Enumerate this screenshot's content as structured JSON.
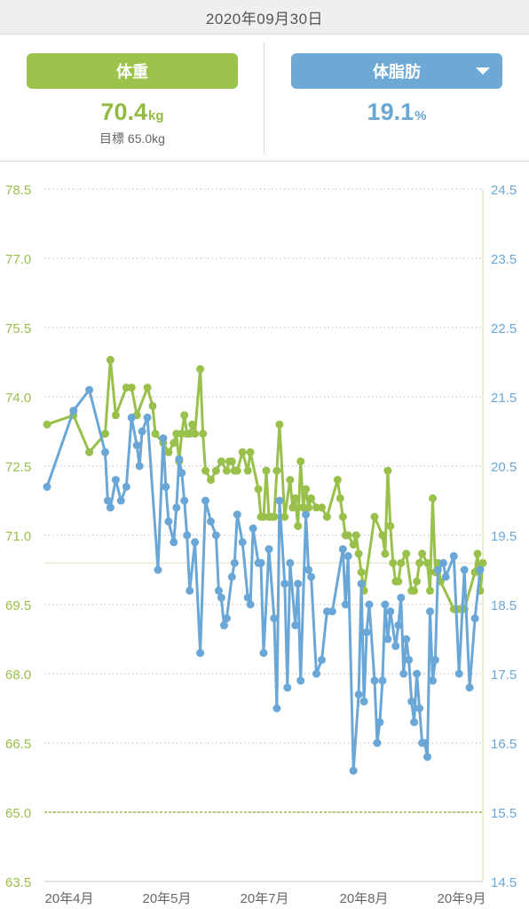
{
  "header": {
    "date": "2020年09月30日"
  },
  "weight_panel": {
    "label": "体重",
    "value": "70.4",
    "unit": "kg",
    "goal_label": "目標",
    "goal_value": "65.0kg"
  },
  "fat_panel": {
    "label": "体脂肪",
    "value": "19.1",
    "unit": "%",
    "dropdown_icon": "caret-down-icon"
  },
  "colors": {
    "weight": "#98c04a",
    "fat": "#6aa7d6",
    "grid": "#bdbdbd",
    "goal": "#b8c77a"
  },
  "chart_data": {
    "type": "line",
    "title": "",
    "x_ticks": [
      "20年4月",
      "20年5月",
      "20年7月",
      "20年8月",
      "20年9月"
    ],
    "y_left": {
      "ticks": [
        "78.5",
        "77.0",
        "75.5",
        "74.0",
        "72.5",
        "71.0",
        "69.5",
        "68.0",
        "66.5",
        "65.0",
        "63.5"
      ],
      "range": [
        63.5,
        78.5
      ]
    },
    "y_right": {
      "ticks": [
        "24.5",
        "23.5",
        "22.5",
        "21.5",
        "20.5",
        "19.5",
        "18.5",
        "17.5",
        "16.5",
        "15.5",
        "14.5"
      ],
      "range": [
        14.5,
        24.5
      ]
    },
    "goal_line": 65.0,
    "current_fat_line": 19.1,
    "series": [
      {
        "axis": "left",
        "values": [
          [
            0,
            73.4
          ],
          [
            5,
            73.6
          ],
          [
            8,
            72.8
          ],
          [
            11,
            73.2
          ],
          [
            12,
            74.8
          ],
          [
            13,
            73.6
          ],
          [
            15,
            74.2
          ],
          [
            16,
            74.2
          ],
          [
            17,
            73.6
          ],
          [
            19,
            74.2
          ],
          [
            20,
            73.8
          ],
          [
            20.5,
            73.2
          ],
          [
            22,
            73.0
          ],
          [
            23,
            72.8
          ],
          [
            24,
            73.0
          ],
          [
            24.5,
            73.2
          ],
          [
            25,
            72.6
          ],
          [
            25.5,
            73.2
          ],
          [
            26,
            73.6
          ],
          [
            26.5,
            73.2
          ],
          [
            27,
            73.2
          ],
          [
            27.5,
            73.4
          ],
          [
            28,
            73.2
          ],
          [
            29,
            74.6
          ],
          [
            29.5,
            73.2
          ],
          [
            30,
            72.4
          ],
          [
            31,
            72.2
          ],
          [
            32,
            72.4
          ],
          [
            33,
            72.6
          ],
          [
            34,
            72.4
          ],
          [
            34.5,
            72.6
          ],
          [
            35,
            72.6
          ],
          [
            35.5,
            72.4
          ],
          [
            36,
            72.4
          ],
          [
            37,
            72.8
          ],
          [
            38,
            72.4
          ],
          [
            38.5,
            72.8
          ],
          [
            40,
            72.0
          ],
          [
            40.5,
            71.4
          ],
          [
            41,
            71.4
          ],
          [
            41.5,
            72.4
          ],
          [
            42,
            71.4
          ],
          [
            42.5,
            71.4
          ],
          [
            43,
            71.4
          ],
          [
            43.5,
            72.4
          ],
          [
            44,
            73.4
          ],
          [
            45,
            71.4
          ],
          [
            46,
            72.2
          ],
          [
            46.5,
            71.6
          ],
          [
            47,
            71.8
          ],
          [
            47.5,
            71.2
          ],
          [
            48,
            72.6
          ],
          [
            48.5,
            71.6
          ],
          [
            49,
            72.0
          ],
          [
            49.5,
            71.6
          ],
          [
            50,
            71.8
          ],
          [
            51,
            71.6
          ],
          [
            52,
            71.6
          ],
          [
            53,
            71.4
          ],
          [
            55,
            72.2
          ],
          [
            55.5,
            71.8
          ],
          [
            56,
            71.4
          ],
          [
            56.5,
            71.0
          ],
          [
            57,
            71.0
          ],
          [
            58,
            70.8
          ],
          [
            58.5,
            71.0
          ],
          [
            59,
            70.6
          ],
          [
            59.5,
            70.2
          ],
          [
            60,
            69.8
          ],
          [
            62,
            71.4
          ],
          [
            63.5,
            71.0
          ],
          [
            64,
            70.6
          ],
          [
            64.5,
            72.4
          ],
          [
            65,
            71.2
          ],
          [
            65.5,
            70.4
          ],
          [
            66,
            70.0
          ],
          [
            66.5,
            70.0
          ],
          [
            67,
            70.4
          ],
          [
            68,
            70.6
          ],
          [
            69,
            69.8
          ],
          [
            69.5,
            69.8
          ],
          [
            70,
            70.0
          ],
          [
            70.5,
            70.4
          ],
          [
            71,
            70.6
          ],
          [
            72,
            70.4
          ],
          [
            72.5,
            69.8
          ],
          [
            73,
            71.8
          ],
          [
            73.5,
            70.2
          ],
          [
            74,
            70.4
          ],
          [
            74.5,
            70.0
          ],
          [
            77,
            69.4
          ],
          [
            78,
            69.4
          ],
          [
            79,
            69.4
          ],
          [
            81,
            70.2
          ],
          [
            81.5,
            70.6
          ],
          [
            82,
            69.8
          ],
          [
            82.5,
            70.4
          ]
        ]
      },
      {
        "axis": "right",
        "values": [
          [
            0,
            20.2
          ],
          [
            5,
            21.3
          ],
          [
            8,
            21.6
          ],
          [
            11,
            20.7
          ],
          [
            11.5,
            20.0
          ],
          [
            12,
            19.9
          ],
          [
            13,
            20.3
          ],
          [
            14,
            20.0
          ],
          [
            15,
            20.2
          ],
          [
            16,
            21.2
          ],
          [
            17,
            20.8
          ],
          [
            17.5,
            20.5
          ],
          [
            18,
            21.0
          ],
          [
            19,
            21.2
          ],
          [
            21,
            19.0
          ],
          [
            22,
            20.9
          ],
          [
            22.5,
            20.2
          ],
          [
            23,
            19.7
          ],
          [
            24,
            19.4
          ],
          [
            24.5,
            19.9
          ],
          [
            25,
            20.6
          ],
          [
            25.5,
            20.4
          ],
          [
            26,
            20.0
          ],
          [
            26.5,
            19.5
          ],
          [
            27,
            18.7
          ],
          [
            28,
            19.4
          ],
          [
            29,
            17.8
          ],
          [
            30,
            20.0
          ],
          [
            31,
            19.7
          ],
          [
            32,
            19.5
          ],
          [
            32.5,
            18.7
          ],
          [
            33,
            18.6
          ],
          [
            33.5,
            18.2
          ],
          [
            34,
            18.3
          ],
          [
            35,
            18.9
          ],
          [
            35.5,
            19.1
          ],
          [
            36,
            19.8
          ],
          [
            37,
            19.4
          ],
          [
            38,
            18.6
          ],
          [
            38.5,
            18.5
          ],
          [
            39,
            19.6
          ],
          [
            40,
            19.1
          ],
          [
            40.5,
            19.1
          ],
          [
            41,
            17.8
          ],
          [
            42,
            19.3
          ],
          [
            43,
            18.3
          ],
          [
            43.5,
            17.0
          ],
          [
            44,
            20.0
          ],
          [
            45,
            18.8
          ],
          [
            45.5,
            17.3
          ],
          [
            46,
            19.1
          ],
          [
            47,
            18.2
          ],
          [
            47.5,
            18.8
          ],
          [
            48,
            17.4
          ],
          [
            49,
            19.8
          ],
          [
            49.5,
            19.0
          ],
          [
            50,
            18.9
          ],
          [
            51,
            17.5
          ],
          [
            52,
            17.7
          ],
          [
            53,
            18.4
          ],
          [
            54,
            18.4
          ],
          [
            56,
            19.3
          ],
          [
            56.5,
            18.5
          ],
          [
            57,
            19.2
          ],
          [
            58,
            16.1
          ],
          [
            59,
            17.2
          ],
          [
            59.5,
            18.8
          ],
          [
            60,
            17.1
          ],
          [
            60.5,
            18.1
          ],
          [
            61,
            18.5
          ],
          [
            62,
            17.4
          ],
          [
            62.5,
            16.5
          ],
          [
            63,
            16.8
          ],
          [
            63.5,
            17.4
          ],
          [
            64,
            18.5
          ],
          [
            64.5,
            18.0
          ],
          [
            65,
            18.4
          ],
          [
            66,
            17.9
          ],
          [
            66.5,
            18.2
          ],
          [
            67,
            18.6
          ],
          [
            67.5,
            17.5
          ],
          [
            68,
            18.0
          ],
          [
            68.5,
            17.7
          ],
          [
            69,
            17.1
          ],
          [
            69.5,
            16.8
          ],
          [
            70,
            17.5
          ],
          [
            70.5,
            17.0
          ],
          [
            71,
            16.5
          ],
          [
            71.5,
            16.5
          ],
          [
            72,
            16.3
          ],
          [
            72.5,
            18.4
          ],
          [
            73,
            17.4
          ],
          [
            73.5,
            17.7
          ],
          [
            74,
            19.0
          ],
          [
            75,
            19.1
          ],
          [
            75.5,
            18.9
          ],
          [
            77,
            19.2
          ],
          [
            78,
            17.5
          ],
          [
            79,
            19.0
          ],
          [
            80,
            17.3
          ],
          [
            81,
            18.3
          ],
          [
            82,
            19.0
          ]
        ]
      }
    ],
    "grid": true
  }
}
